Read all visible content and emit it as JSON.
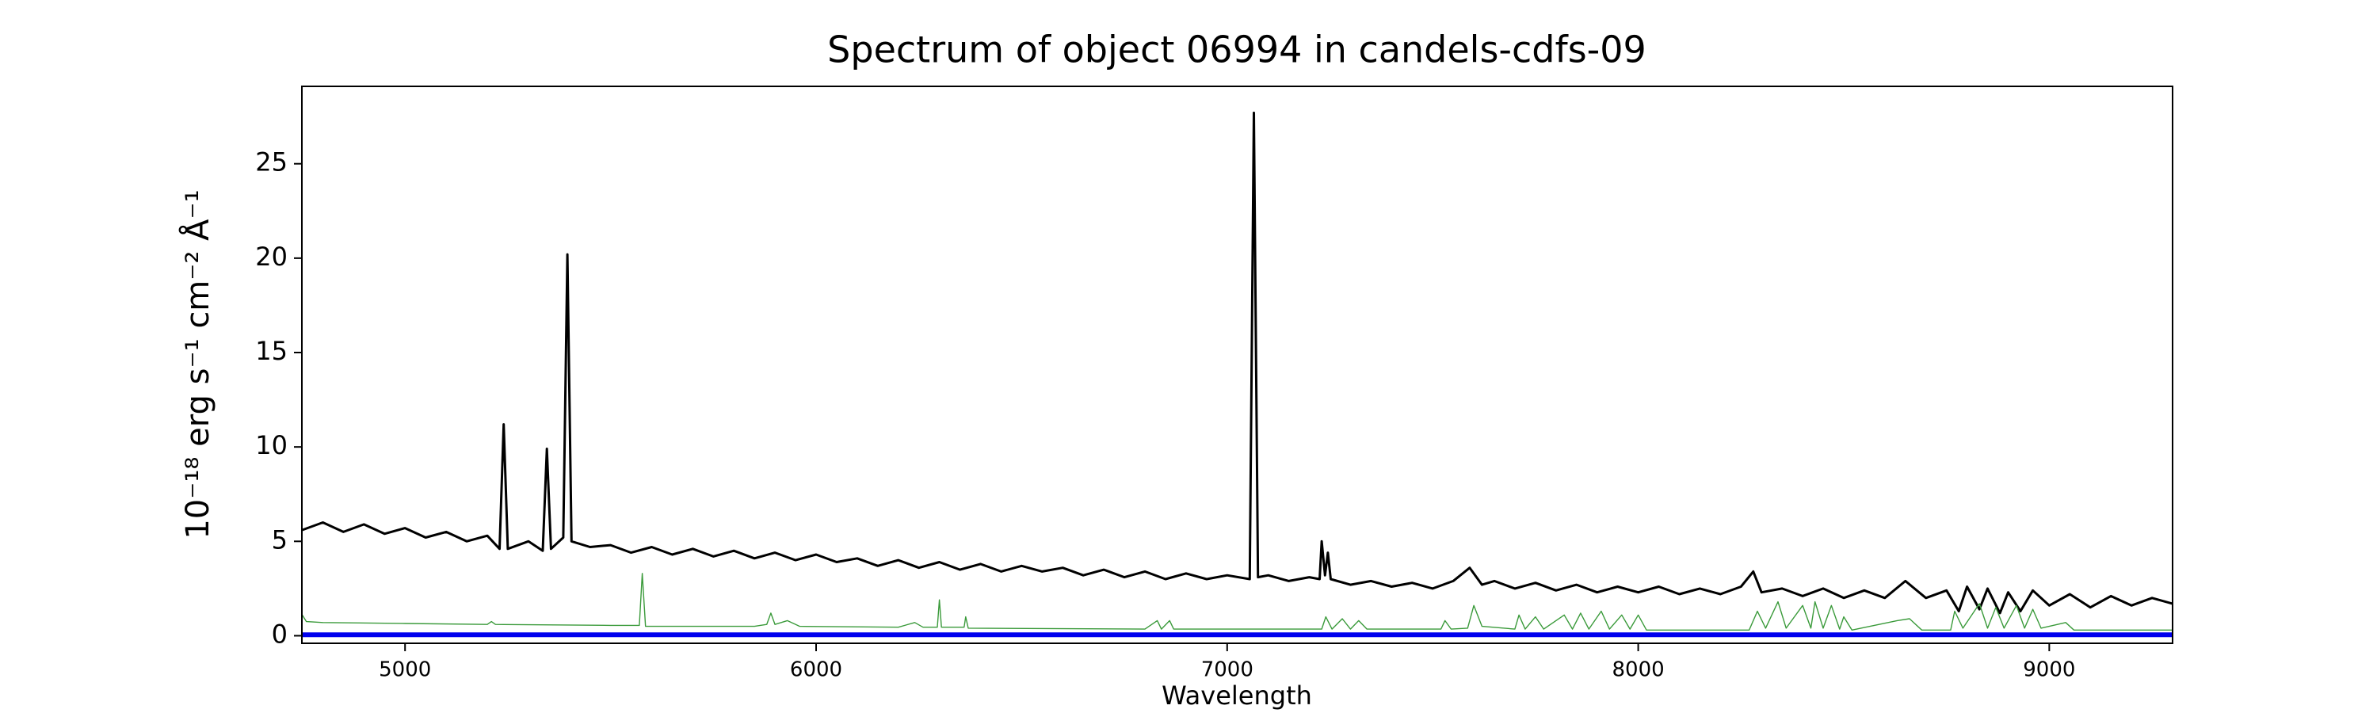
{
  "chart_data": {
    "type": "line",
    "title": "Spectrum of object 06994 in candels-cdfs-09",
    "xlabel": "Wavelength",
    "ylabel": "10⁻¹⁸ erg s⁻¹ cm⁻² Å⁻¹",
    "xlim": [
      4749,
      9300
    ],
    "ylim": [
      -0.4,
      29.1
    ],
    "xticks": [
      5000,
      6000,
      7000,
      8000,
      9000
    ],
    "yticks": [
      0,
      5,
      10,
      15,
      20,
      25
    ],
    "series": [
      {
        "color": "#000000",
        "width": 3,
        "x": [
          4750,
          4800,
          4850,
          4900,
          4950,
          5000,
          5050,
          5100,
          5150,
          5200,
          5230,
          5240,
          5250,
          5300,
          5335,
          5345,
          5355,
          5385,
          5395,
          5405,
          5450,
          5500,
          5550,
          5600,
          5650,
          5700,
          5750,
          5800,
          5850,
          5900,
          5950,
          6000,
          6050,
          6100,
          6150,
          6200,
          6250,
          6300,
          6350,
          6400,
          6450,
          6500,
          6550,
          6600,
          6650,
          6700,
          6750,
          6800,
          6850,
          6900,
          6950,
          7000,
          7055,
          7065,
          7075,
          7100,
          7150,
          7200,
          7225,
          7230,
          7238,
          7245,
          7252,
          7300,
          7350,
          7400,
          7450,
          7500,
          7550,
          7590,
          7620,
          7650,
          7700,
          7750,
          7800,
          7850,
          7900,
          7950,
          8000,
          8050,
          8100,
          8150,
          8200,
          8250,
          8280,
          8300,
          8350,
          8400,
          8450,
          8500,
          8550,
          8600,
          8650,
          8700,
          8750,
          8780,
          8800,
          8830,
          8850,
          8880,
          8900,
          8930,
          8960,
          9000,
          9050,
          9100,
          9150,
          9200,
          9250,
          9300
        ],
        "values": [
          5.6,
          6.0,
          5.5,
          5.9,
          5.4,
          5.7,
          5.2,
          5.5,
          5.0,
          5.3,
          4.6,
          11.2,
          4.6,
          5.0,
          4.5,
          9.9,
          4.6,
          5.2,
          20.2,
          5.0,
          4.7,
          4.8,
          4.4,
          4.7,
          4.3,
          4.6,
          4.2,
          4.5,
          4.1,
          4.4,
          4.0,
          4.3,
          3.9,
          4.1,
          3.7,
          4.0,
          3.6,
          3.9,
          3.5,
          3.8,
          3.4,
          3.7,
          3.4,
          3.6,
          3.2,
          3.5,
          3.1,
          3.4,
          3.0,
          3.3,
          3.0,
          3.2,
          3.0,
          27.7,
          3.1,
          3.2,
          2.9,
          3.1,
          3.0,
          5.0,
          3.2,
          4.4,
          3.0,
          2.7,
          2.9,
          2.6,
          2.8,
          2.5,
          2.9,
          3.6,
          2.7,
          2.9,
          2.5,
          2.8,
          2.4,
          2.7,
          2.3,
          2.6,
          2.3,
          2.6,
          2.2,
          2.5,
          2.2,
          2.6,
          3.4,
          2.3,
          2.5,
          2.1,
          2.5,
          2.0,
          2.4,
          2.0,
          2.9,
          2.0,
          2.4,
          1.3,
          2.6,
          1.4,
          2.5,
          1.2,
          2.3,
          1.3,
          2.4,
          1.6,
          2.2,
          1.5,
          2.1,
          1.6,
          2.0,
          1.7
        ]
      },
      {
        "color": "#3a9a3a",
        "width": 1.4,
        "x": [
          4750,
          4760,
          4800,
          5000,
          5200,
          5210,
          5220,
          5500,
          5570,
          5577,
          5585,
          5850,
          5880,
          5890,
          5900,
          5930,
          5960,
          6200,
          6240,
          6260,
          6295,
          6300,
          6305,
          6360,
          6364,
          6370,
          6800,
          6830,
          6840,
          6860,
          6870,
          7230,
          7240,
          7255,
          7280,
          7300,
          7320,
          7340,
          7520,
          7530,
          7545,
          7585,
          7600,
          7620,
          7700,
          7710,
          7725,
          7750,
          7770,
          7820,
          7840,
          7860,
          7880,
          7910,
          7930,
          7960,
          7980,
          8000,
          8020,
          8270,
          8290,
          8310,
          8340,
          8360,
          8400,
          8420,
          8430,
          8450,
          8470,
          8490,
          8500,
          8520,
          8630,
          8660,
          8690,
          8760,
          8770,
          8790,
          8830,
          8850,
          8870,
          8890,
          8920,
          8940,
          8960,
          8980,
          9040,
          9060,
          9300
        ],
        "values": [
          1.1,
          0.75,
          0.7,
          0.65,
          0.6,
          0.75,
          0.6,
          0.55,
          0.55,
          3.3,
          0.5,
          0.5,
          0.6,
          1.2,
          0.6,
          0.8,
          0.5,
          0.45,
          0.7,
          0.45,
          0.45,
          1.9,
          0.45,
          0.45,
          1.0,
          0.4,
          0.35,
          0.8,
          0.35,
          0.8,
          0.35,
          0.35,
          1.0,
          0.35,
          0.9,
          0.35,
          0.8,
          0.35,
          0.35,
          0.8,
          0.35,
          0.4,
          1.6,
          0.5,
          0.35,
          1.1,
          0.35,
          1.0,
          0.35,
          1.1,
          0.35,
          1.2,
          0.35,
          1.3,
          0.35,
          1.1,
          0.35,
          1.1,
          0.3,
          0.3,
          1.3,
          0.4,
          1.8,
          0.4,
          1.6,
          0.4,
          1.8,
          0.4,
          1.6,
          0.35,
          1.0,
          0.3,
          0.8,
          0.9,
          0.3,
          0.3,
          1.3,
          0.4,
          1.7,
          0.4,
          1.5,
          0.4,
          1.6,
          0.4,
          1.4,
          0.4,
          0.7,
          0.3,
          0.3
        ]
      },
      {
        "color": "#0000ee",
        "width": 6,
        "x": [
          4750,
          9300
        ],
        "values": [
          0.05,
          0.05
        ]
      }
    ]
  }
}
